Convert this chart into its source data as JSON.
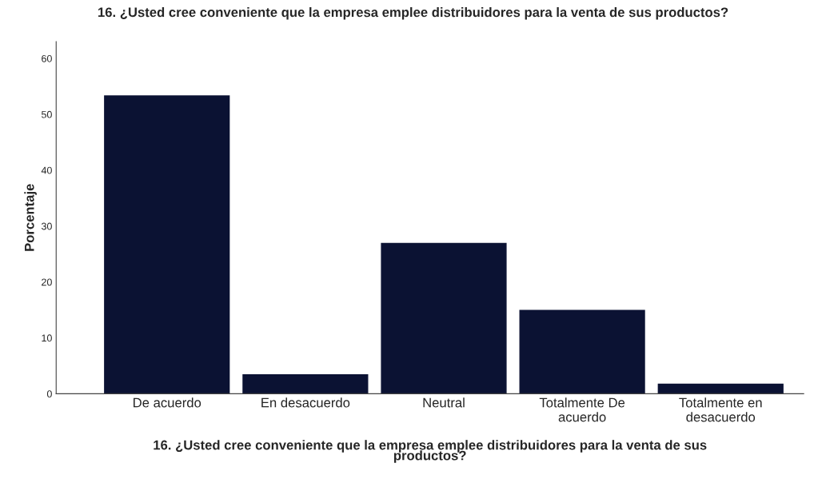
{
  "chart_data": {
    "type": "bar",
    "title": "16. ¿Usted cree conveniente que la empresa emplee distribuidores para la venta de sus productos?",
    "xlabel": "16. ¿Usted cree conveniente que la empresa emplee distribuidores para la venta de sus\nproductos?",
    "ylabel": "Porcentaje",
    "categories": [
      "De acuerdo",
      "En desacuerdo",
      "Neutral",
      "Totalmente De\nacuerdo",
      "Totalmente en\ndesacuerdo"
    ],
    "values": [
      53.3,
      3.4,
      26.9,
      14.9,
      1.7
    ],
    "color": "#0b1233",
    "ylim": [
      0,
      63
    ],
    "yticks": [
      0,
      10,
      20,
      30,
      40,
      50,
      60
    ],
    "grid": false
  }
}
